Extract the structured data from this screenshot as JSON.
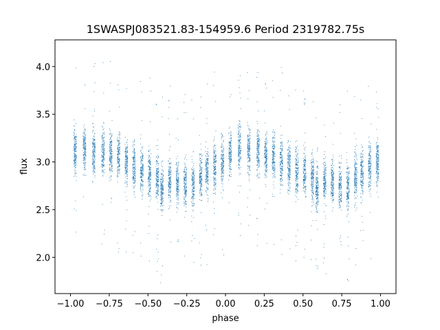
{
  "chart_data": {
    "type": "scatter",
    "title": "1SWASPJ083521.83-154959.6 Period 2319782.75s",
    "xlabel": "phase",
    "ylabel": "flux",
    "xlim": [
      -1.1,
      1.1
    ],
    "ylim": [
      1.62,
      4.28
    ],
    "xticks": [
      -1.0,
      -0.75,
      -0.5,
      -0.25,
      0.0,
      0.25,
      0.5,
      0.75,
      1.0
    ],
    "xtick_labels": [
      "−1.00",
      "−0.75",
      "−0.50",
      "−0.25",
      "0.00",
      "0.25",
      "0.50",
      "0.75",
      "1.00"
    ],
    "yticks": [
      2.0,
      2.5,
      3.0,
      3.5,
      4.0
    ],
    "ytick_labels": [
      "2.0",
      "2.5",
      "3.0",
      "3.5",
      "4.0"
    ],
    "grid": false,
    "point_color": "#1f77b4",
    "phase_folded": true,
    "clusters": [
      {
        "x": -0.97,
        "y": 3.1
      },
      {
        "x": -0.91,
        "y": 3.15
      },
      {
        "x": -0.85,
        "y": 3.12
      },
      {
        "x": -0.79,
        "y": 3.1
      },
      {
        "x": -0.74,
        "y": 3.08
      },
      {
        "x": -0.69,
        "y": 3.05
      },
      {
        "x": -0.64,
        "y": 3.0
      },
      {
        "x": -0.59,
        "y": 2.95
      },
      {
        "x": -0.54,
        "y": 2.9
      },
      {
        "x": -0.49,
        "y": 2.88
      },
      {
        "x": -0.44,
        "y": 2.85
      },
      {
        "x": -0.41,
        "y": 2.72
      },
      {
        "x": -0.36,
        "y": 2.8
      },
      {
        "x": -0.31,
        "y": 2.78
      },
      {
        "x": -0.26,
        "y": 2.75
      },
      {
        "x": -0.21,
        "y": 2.75
      },
      {
        "x": -0.16,
        "y": 2.85
      },
      {
        "x": -0.12,
        "y": 2.9
      },
      {
        "x": -0.07,
        "y": 2.95
      },
      {
        "x": -0.02,
        "y": 3.0
      },
      {
        "x": 0.03,
        "y": 3.1
      },
      {
        "x": 0.09,
        "y": 3.15
      },
      {
        "x": 0.15,
        "y": 3.12
      },
      {
        "x": 0.21,
        "y": 3.1
      },
      {
        "x": 0.26,
        "y": 3.08
      },
      {
        "x": 0.31,
        "y": 3.05
      },
      {
        "x": 0.36,
        "y": 3.0
      },
      {
        "x": 0.41,
        "y": 2.95
      },
      {
        "x": 0.46,
        "y": 2.9
      },
      {
        "x": 0.51,
        "y": 2.88
      },
      {
        "x": 0.56,
        "y": 2.85
      },
      {
        "x": 0.59,
        "y": 2.72
      },
      {
        "x": 0.64,
        "y": 2.8
      },
      {
        "x": 0.69,
        "y": 2.78
      },
      {
        "x": 0.74,
        "y": 2.75
      },
      {
        "x": 0.79,
        "y": 2.75
      },
      {
        "x": 0.84,
        "y": 2.85
      },
      {
        "x": 0.88,
        "y": 2.9
      },
      {
        "x": 0.93,
        "y": 2.95
      },
      {
        "x": 0.98,
        "y": 3.0
      }
    ]
  }
}
